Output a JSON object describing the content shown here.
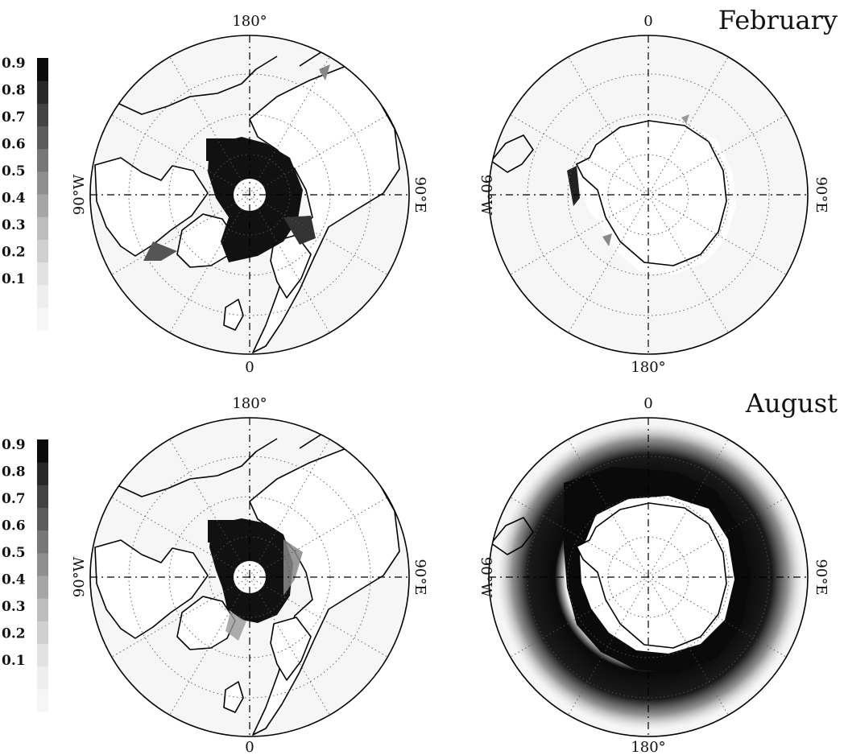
{
  "colorbar": {
    "ticks": [
      "0.9",
      "0.8",
      "0.7",
      "0.6",
      "0.5",
      "0.4",
      "0.3",
      "0.2",
      "0.1"
    ],
    "levels": [
      "#f6f6f6",
      "#eeeeee",
      "#e2e2e2",
      "#d0d0d0",
      "#bdbdbd",
      "#a6a6a6",
      "#8f8f8f",
      "#777777",
      "#5c5c5c",
      "#434343",
      "#282828",
      "#0a0a0a"
    ]
  },
  "colors": {
    "background_sea": "#f6f6f6",
    "land": "#ffffff",
    "max_fraction": "#111111"
  },
  "rows": [
    {
      "month": "February",
      "north": {
        "top_label": "180°",
        "bottom_label": "0",
        "left_label": "90°W",
        "right_label": "90°E"
      },
      "south": {
        "top_label": "0",
        "bottom_label": "180°",
        "left_label": "90°W",
        "right_label": "90°E"
      }
    },
    {
      "month": "August",
      "north": {
        "top_label": "180°",
        "bottom_label": "0",
        "left_label": "90°W",
        "right_label": "90°E"
      },
      "south": {
        "top_label": "0",
        "bottom_label": "180°",
        "left_label": "90°W",
        "right_label": "90°E"
      }
    }
  ]
}
